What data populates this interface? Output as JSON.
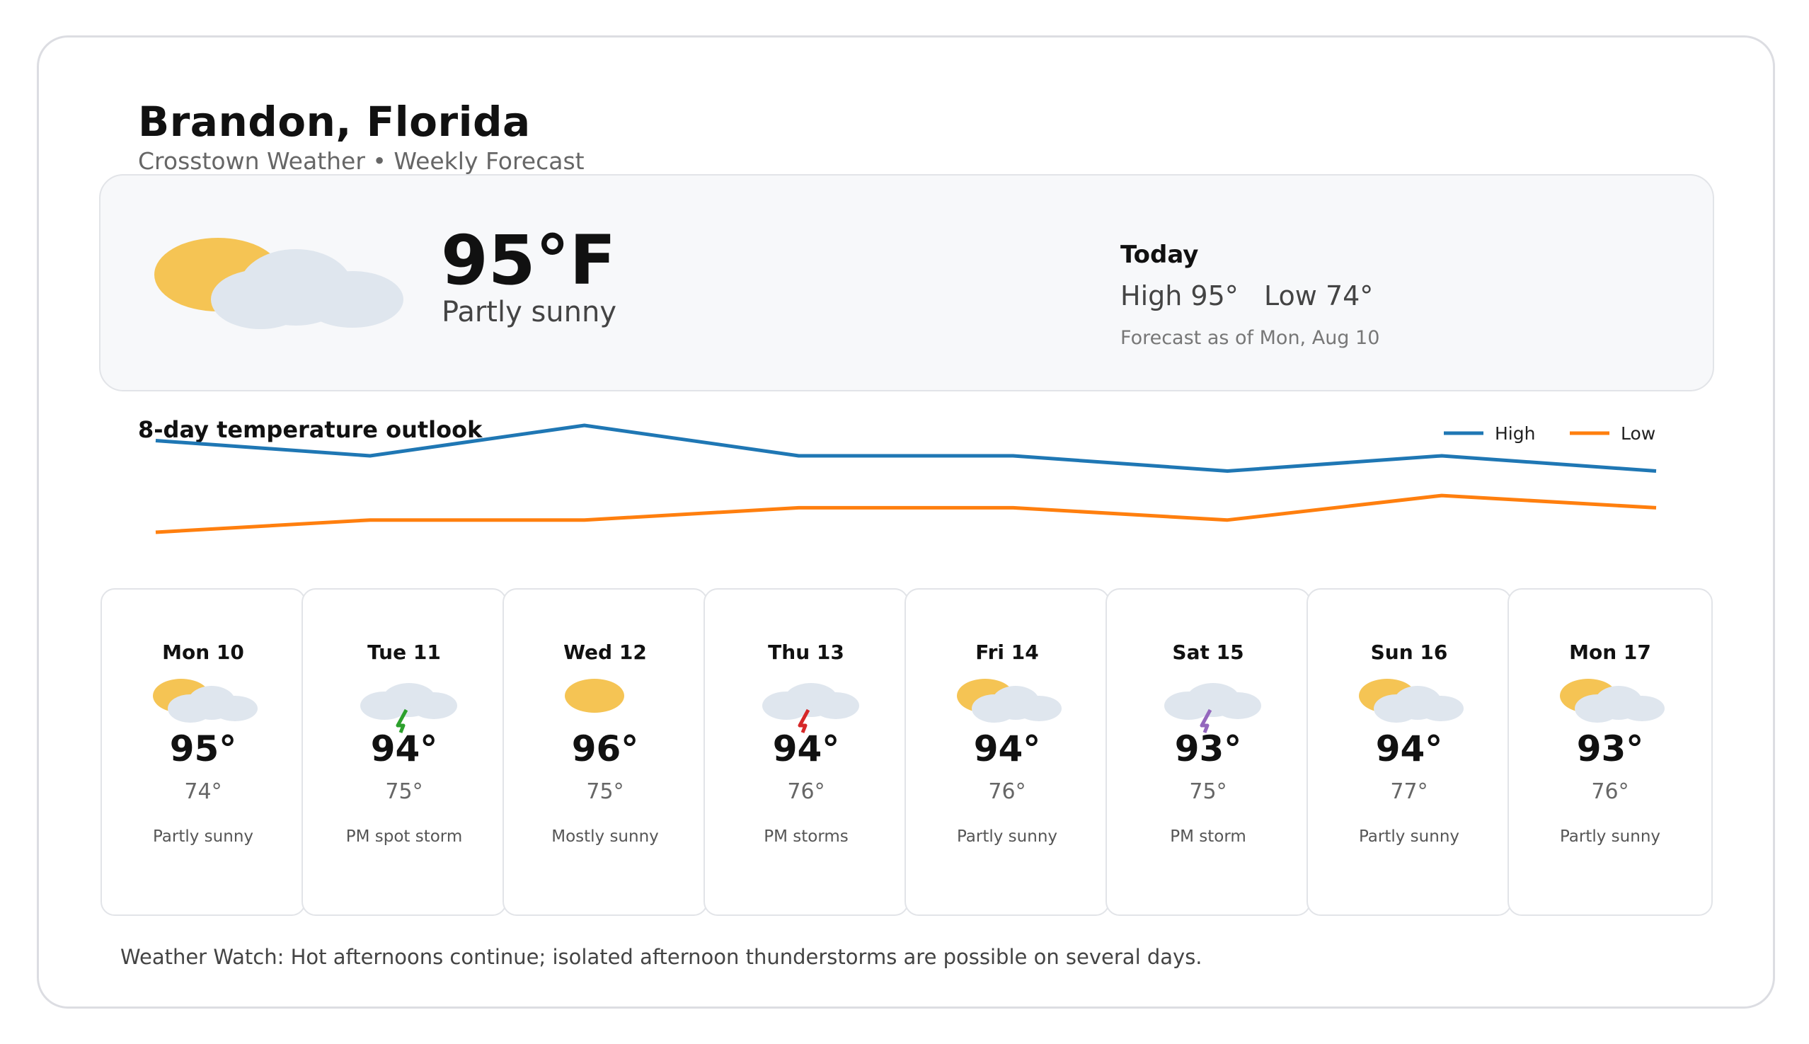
{
  "location": {
    "city": "Brandon, Florida",
    "subtitle": "Crosstown Weather • Weekly Forecast"
  },
  "current": {
    "temperature": "95°F",
    "condition": "Partly sunny",
    "icon": "partly-sunny-icon",
    "today_label": "Today",
    "high": "High 95°",
    "low": "Low 74°",
    "forecast_as_of": "Forecast as of Mon, Aug 10"
  },
  "chart_data": {
    "type": "line",
    "title": "8-day temperature outlook",
    "categories": [
      "Mon 10",
      "Tue 11",
      "Wed 12",
      "Thu 13",
      "Fri 14",
      "Sat 15",
      "Sun 16",
      "Mon 17"
    ],
    "series": [
      {
        "name": "High",
        "values": [
          95,
          94,
          96,
          94,
          94,
          93,
          94,
          93
        ],
        "color": "#1f77b4"
      },
      {
        "name": "Low",
        "values": [
          74,
          75,
          75,
          76,
          76,
          75,
          77,
          76
        ],
        "color": "#ff7f0e"
      }
    ],
    "legend": "top-right",
    "axes_visible": false,
    "grid": false
  },
  "days": [
    {
      "name": "Mon 10",
      "high": "95°",
      "low": "74°",
      "desc": "Partly sunny",
      "icon": "partly-sunny-icon"
    },
    {
      "name": "Tue 11",
      "high": "94°",
      "low": "75°",
      "desc": "PM spot storm",
      "icon": "storm-cloud-icon",
      "bolt_color": "#2ca02c"
    },
    {
      "name": "Wed 12",
      "high": "96°",
      "low": "75°",
      "desc": "Mostly sunny",
      "icon": "sun-icon"
    },
    {
      "name": "Thu 13",
      "high": "94°",
      "low": "76°",
      "desc": "PM storms",
      "icon": "storm-cloud-icon",
      "bolt_color": "#d62728"
    },
    {
      "name": "Fri 14",
      "high": "94°",
      "low": "76°",
      "desc": "Partly sunny",
      "icon": "partly-sunny-icon"
    },
    {
      "name": "Sat 15",
      "high": "93°",
      "low": "75°",
      "desc": "PM storm",
      "icon": "storm-cloud-icon",
      "bolt_color": "#9467bd"
    },
    {
      "name": "Sun 16",
      "high": "94°",
      "low": "77°",
      "desc": "Partly sunny",
      "icon": "partly-sunny-icon"
    },
    {
      "name": "Mon 17",
      "high": "93°",
      "low": "76°",
      "desc": "Partly sunny",
      "icon": "partly-sunny-icon"
    }
  ],
  "footer": {
    "text": "Weather Watch: Hot afternoons continue; isolated afternoon thunderstorms are possible on several days."
  },
  "colors": {
    "sun": "#f5c454",
    "cloud": "#dfe6ee",
    "border": "#dcdde2"
  }
}
